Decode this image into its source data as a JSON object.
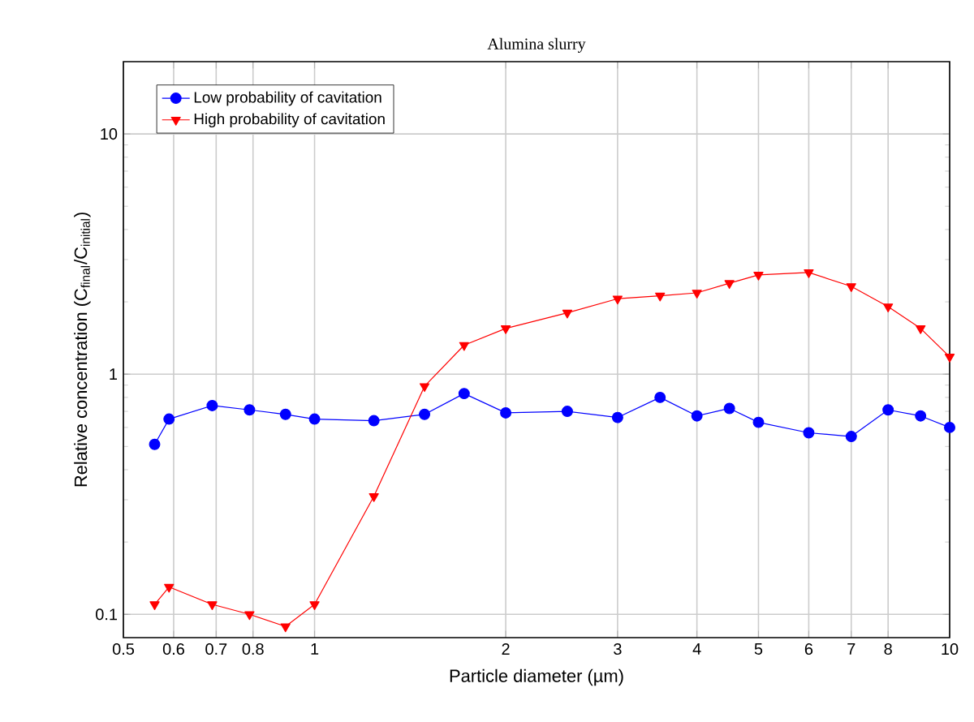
{
  "chart_data": {
    "type": "line",
    "title": "Alumina slurry",
    "xlabel": "Particle diameter (µm)",
    "ylabel": "Relative concentration (C$_{final}$/C$_{initial}$)",
    "x": [
      0.56,
      0.59,
      0.69,
      0.79,
      0.9,
      1,
      1.24,
      1.49,
      1.72,
      2,
      2.5,
      3,
      3.5,
      4,
      4.5,
      5,
      6,
      7,
      8,
      9,
      10
    ],
    "series": [
      {
        "name": "Low probability of cavitation",
        "color": "#0000ff",
        "marker": "circle",
        "values": [
          0.51,
          0.65,
          0.74,
          0.71,
          0.68,
          0.65,
          0.64,
          0.68,
          0.83,
          0.69,
          0.7,
          0.66,
          0.8,
          0.67,
          0.72,
          0.63,
          0.57,
          0.55,
          0.71,
          0.67,
          0.6
        ]
      },
      {
        "name": "High probability of cavitation",
        "color": "#ff0000",
        "marker": "triangle",
        "values": [
          0.11,
          0.13,
          0.11,
          0.1,
          0.089,
          0.11,
          0.31,
          0.89,
          1.32,
          1.55,
          1.8,
          2.06,
          2.12,
          2.18,
          2.39,
          2.59,
          2.65,
          2.32,
          1.91,
          1.55,
          1.18
        ]
      }
    ],
    "log": "xy",
    "xlim": [
      0.5,
      10
    ],
    "ylim": [
      0.08,
      20
    ],
    "xticks": [
      0.5,
      0.6,
      0.7,
      0.8,
      1,
      2,
      3,
      4,
      5,
      6,
      7,
      8,
      10
    ],
    "yticks": [
      0.1,
      1,
      10
    ],
    "grid": true,
    "legend": "top left",
    "line_style": "solid"
  }
}
